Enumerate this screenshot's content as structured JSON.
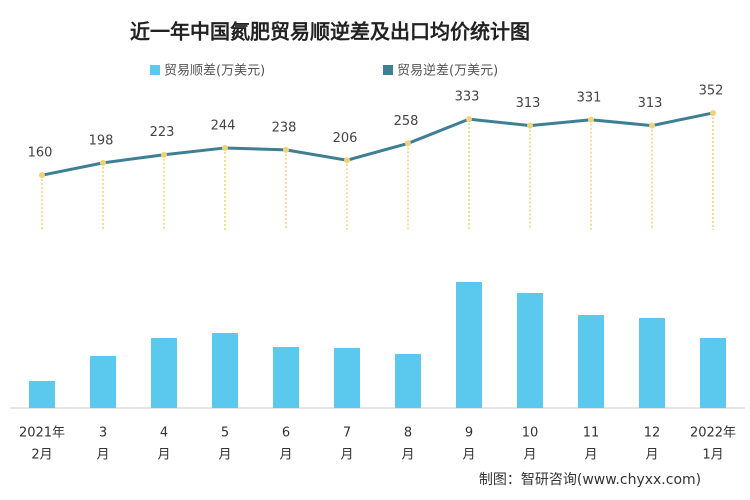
{
  "chart_data": {
    "type": "bar-line",
    "title": "近一年中国氮肥贸易顺逆差及出口均价统计图",
    "categories": [
      [
        "2021年",
        "2月"
      ],
      [
        "3",
        "月"
      ],
      [
        "4",
        "月"
      ],
      [
        "5",
        "月"
      ],
      [
        "6",
        "月"
      ],
      [
        "7",
        "月"
      ],
      [
        "8",
        "月"
      ],
      [
        "9",
        "月"
      ],
      [
        "10",
        "月"
      ],
      [
        "11",
        "月"
      ],
      [
        "12",
        "月"
      ],
      [
        "2022年",
        "1月"
      ]
    ],
    "series": [
      {
        "name": "贸易顺差(万美元)",
        "color": "#5bc8ee",
        "type": "bar",
        "values": [
          27,
          52,
          70,
          75,
          61,
          60,
          54,
          126,
          115,
          93,
          90,
          70
        ]
      },
      {
        "name": "贸易逆差(万美元)",
        "color": "#3f7f95",
        "type": "line",
        "axis": "y2",
        "values": [
          160,
          198,
          223,
          244,
          238,
          206,
          258,
          333,
          313,
          331,
          313,
          352
        ]
      }
    ],
    "ylim": [
      0,
      140
    ],
    "y2lim": [
      0,
      500
    ],
    "source": "制图：智研咨询(www.chyxx.com)"
  }
}
